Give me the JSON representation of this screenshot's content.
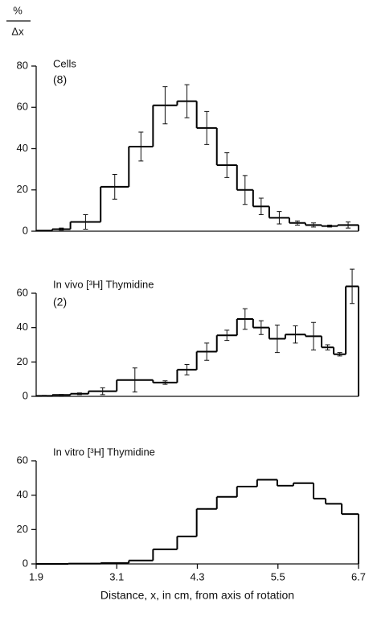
{
  "chart_data": [
    {
      "type": "histogram",
      "ylabel_numerator": "%",
      "ylabel_denominator": "Δx",
      "annotation": "Cells",
      "annotation_sub": "(8)",
      "bins": [
        1.9,
        2.14,
        2.41,
        2.86,
        3.28,
        3.64,
        4.0,
        4.29,
        4.59,
        4.89,
        5.13,
        5.37,
        5.67,
        5.91,
        6.15,
        6.39,
        6.7
      ],
      "values": [
        0.3,
        1,
        4.5,
        21.5,
        41,
        61,
        63,
        50,
        32,
        20,
        12,
        6.5,
        4,
        3,
        2.5,
        3
      ],
      "errors": [
        0,
        0.5,
        3.5,
        6,
        7,
        9,
        8,
        8,
        6,
        7,
        4,
        3,
        1,
        1,
        0.5,
        1.5
      ],
      "xlim": [
        1.9,
        6.7
      ],
      "ylim": [
        0,
        80
      ],
      "yticks": [
        0,
        20,
        40,
        60,
        80
      ],
      "color": "#000000"
    },
    {
      "type": "histogram",
      "annotation": "In vivo [³H] Thymidine",
      "annotation_sub": "(2)",
      "bins": [
        1.9,
        2.14,
        2.41,
        2.68,
        3.1,
        3.64,
        4.0,
        4.29,
        4.59,
        4.89,
        5.13,
        5.37,
        5.61,
        5.91,
        6.15,
        6.33,
        6.51,
        6.7
      ],
      "values": [
        0.3,
        0.8,
        1.5,
        3,
        9.5,
        8,
        15.5,
        26,
        35.5,
        45,
        40,
        33.5,
        36,
        35,
        28.5,
        24.5,
        64
      ],
      "errors": [
        0.3,
        0.3,
        0.5,
        2,
        7,
        1,
        3,
        5,
        3,
        6,
        4,
        8,
        5,
        8,
        1.5,
        1,
        10
      ],
      "xlim": [
        1.9,
        6.7
      ],
      "ylim": [
        0,
        60
      ],
      "yticks": [
        0,
        20,
        40,
        60
      ],
      "color": "#000000"
    },
    {
      "type": "histogram",
      "annotation": "In vitro [³H] Thymidine",
      "bins": [
        1.9,
        2.38,
        2.86,
        3.28,
        3.64,
        4.0,
        4.29,
        4.59,
        4.89,
        5.19,
        5.49,
        5.73,
        6.03,
        6.21,
        6.45,
        6.7
      ],
      "values": [
        0,
        0.2,
        0.5,
        2,
        8.5,
        16,
        32,
        39,
        45,
        49,
        45.5,
        47,
        38,
        35,
        29
      ],
      "xlim": [
        1.9,
        6.7
      ],
      "ylim": [
        0,
        60
      ],
      "yticks": [
        0,
        20,
        40,
        60
      ],
      "xticks": [
        1.9,
        3.1,
        4.3,
        5.5,
        6.7
      ],
      "xlabel": "Distance, x, in cm, from axis of rotation",
      "color": "#000000"
    }
  ]
}
